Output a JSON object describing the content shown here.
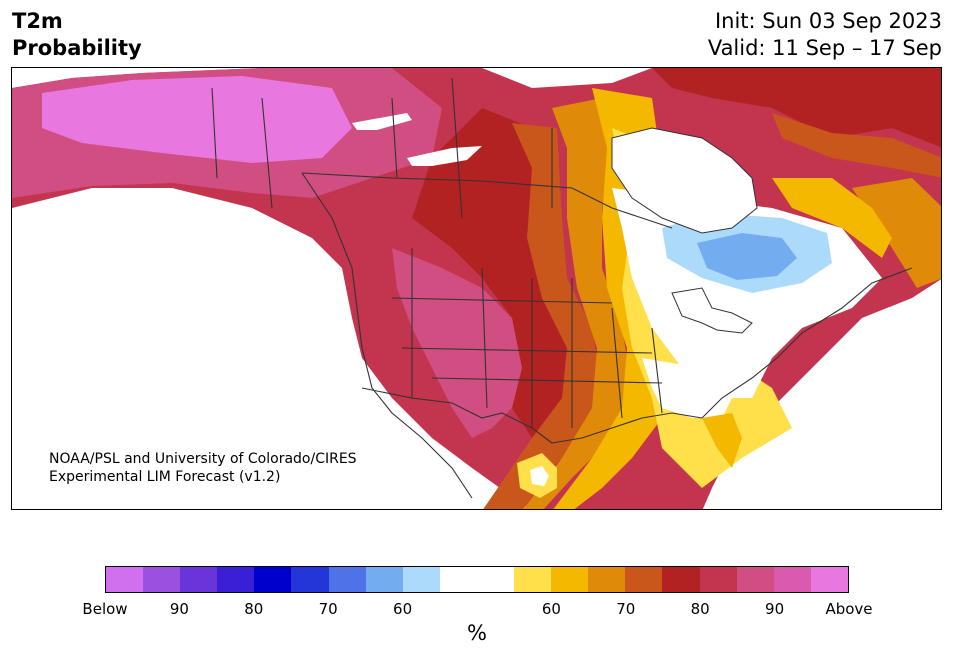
{
  "header": {
    "title_line1": "T2m",
    "title_line2": "Probability",
    "init": "Init: Sun 03 Sep 2023",
    "valid": "Valid: 11 Sep – 17 Sep"
  },
  "credit": {
    "line1": "NOAA/PSL and University of Colorado/CIRES",
    "line2": "Experimental LIM Forecast (v1.2)"
  },
  "colorbar": {
    "colors": [
      "#d070ee",
      "#9c50e0",
      "#6a35d8",
      "#3a1fd6",
      "#0000cc",
      "#2436d8",
      "#4f72e8",
      "#74acf0",
      "#acdafb",
      "#ffffff",
      "#ffffff",
      "#ffe04a",
      "#f4b800",
      "#e08a0a",
      "#c9561a",
      "#b22222",
      "#c3344e",
      "#d04e82",
      "#da5ab0",
      "#e878e0"
    ],
    "ticks": [
      "Below",
      "90",
      "80",
      "70",
      "60",
      "60",
      "70",
      "80",
      "90",
      "Above"
    ],
    "unit": "%"
  },
  "legend_colors": {
    "above_strong": "#e878e0",
    "above_90": "#d04e82",
    "above_80": "#b22222",
    "above_70": "#c9561a",
    "above_65": "#e08a0a",
    "above_60": "#f4b800",
    "above_55": "#ffe04a",
    "below_55": "#acdafb",
    "below_60": "#74acf0"
  }
}
